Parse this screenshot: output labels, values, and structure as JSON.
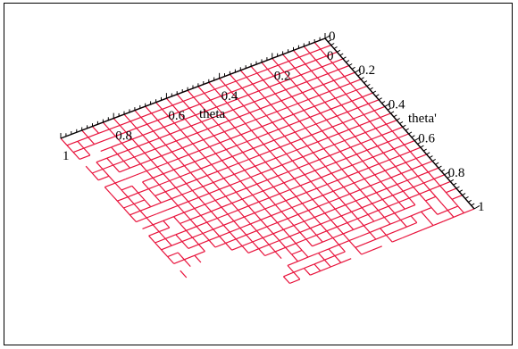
{
  "chart_data": {
    "type": "surface",
    "xlabel": "theta",
    "ylabel": "theta'",
    "x_ticks": [
      "0",
      "0.2",
      "0.4",
      "0.6",
      "0.8",
      "1"
    ],
    "y_ticks": [
      "0",
      "0.2",
      "0.4",
      "0.6",
      "0.8",
      "1"
    ],
    "xlim": [
      0,
      1
    ],
    "ylim": [
      0,
      1
    ],
    "mesh_color": "#e8113a",
    "axis_color": "#000000",
    "grid_resolution": 25,
    "style": "wireframe mesh with missing region"
  }
}
